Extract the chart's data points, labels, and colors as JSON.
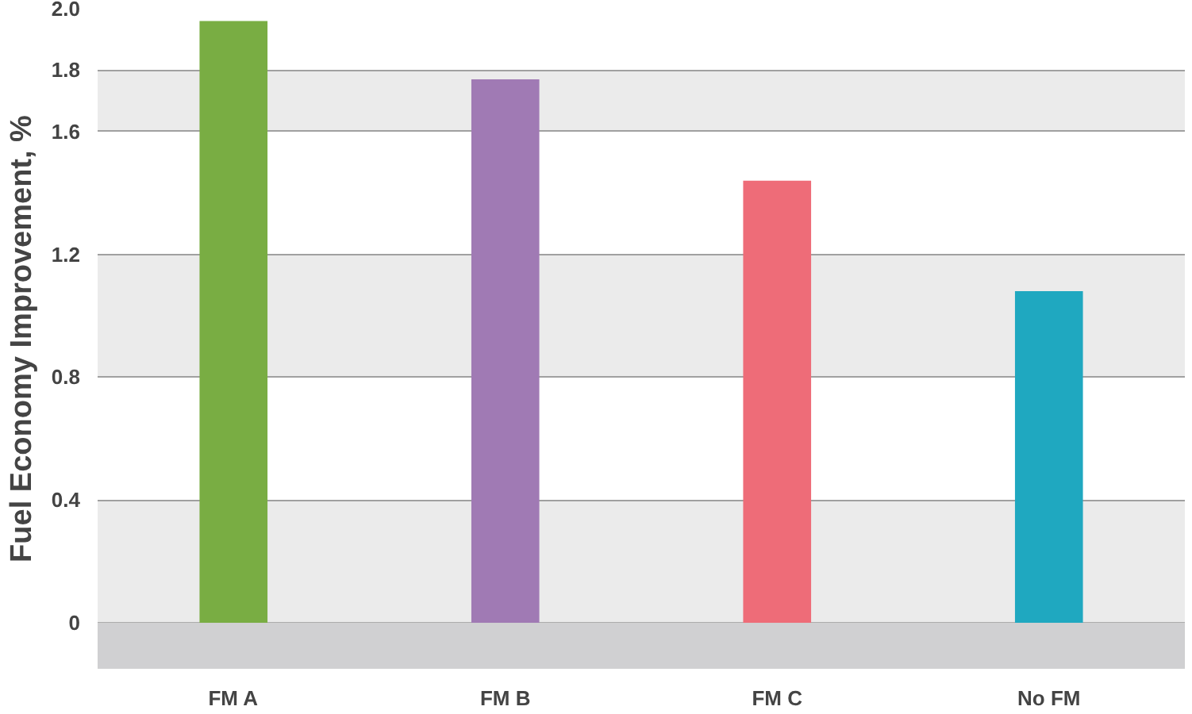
{
  "chart_data": {
    "type": "bar",
    "ylabel": "Fuel Economy Improvement, %",
    "categories": [
      "FM A",
      "FM B",
      "FM C",
      "No FM"
    ],
    "values": [
      1.96,
      1.77,
      1.44,
      1.08
    ],
    "colors": [
      "#79ad43",
      "#a07ab4",
      "#ee6c78",
      "#1fa8c0"
    ],
    "ylim": [
      -0.15,
      2.0
    ],
    "yticks": [
      0,
      0.4,
      0.8,
      1.2,
      1.6,
      1.8,
      {
        "value": 2.0,
        "label": "2.0"
      }
    ],
    "bands": [
      {
        "axis": "y",
        "from": -0.15,
        "to": 0,
        "color": "#d0d0d2"
      }
    ],
    "grid": "y"
  }
}
